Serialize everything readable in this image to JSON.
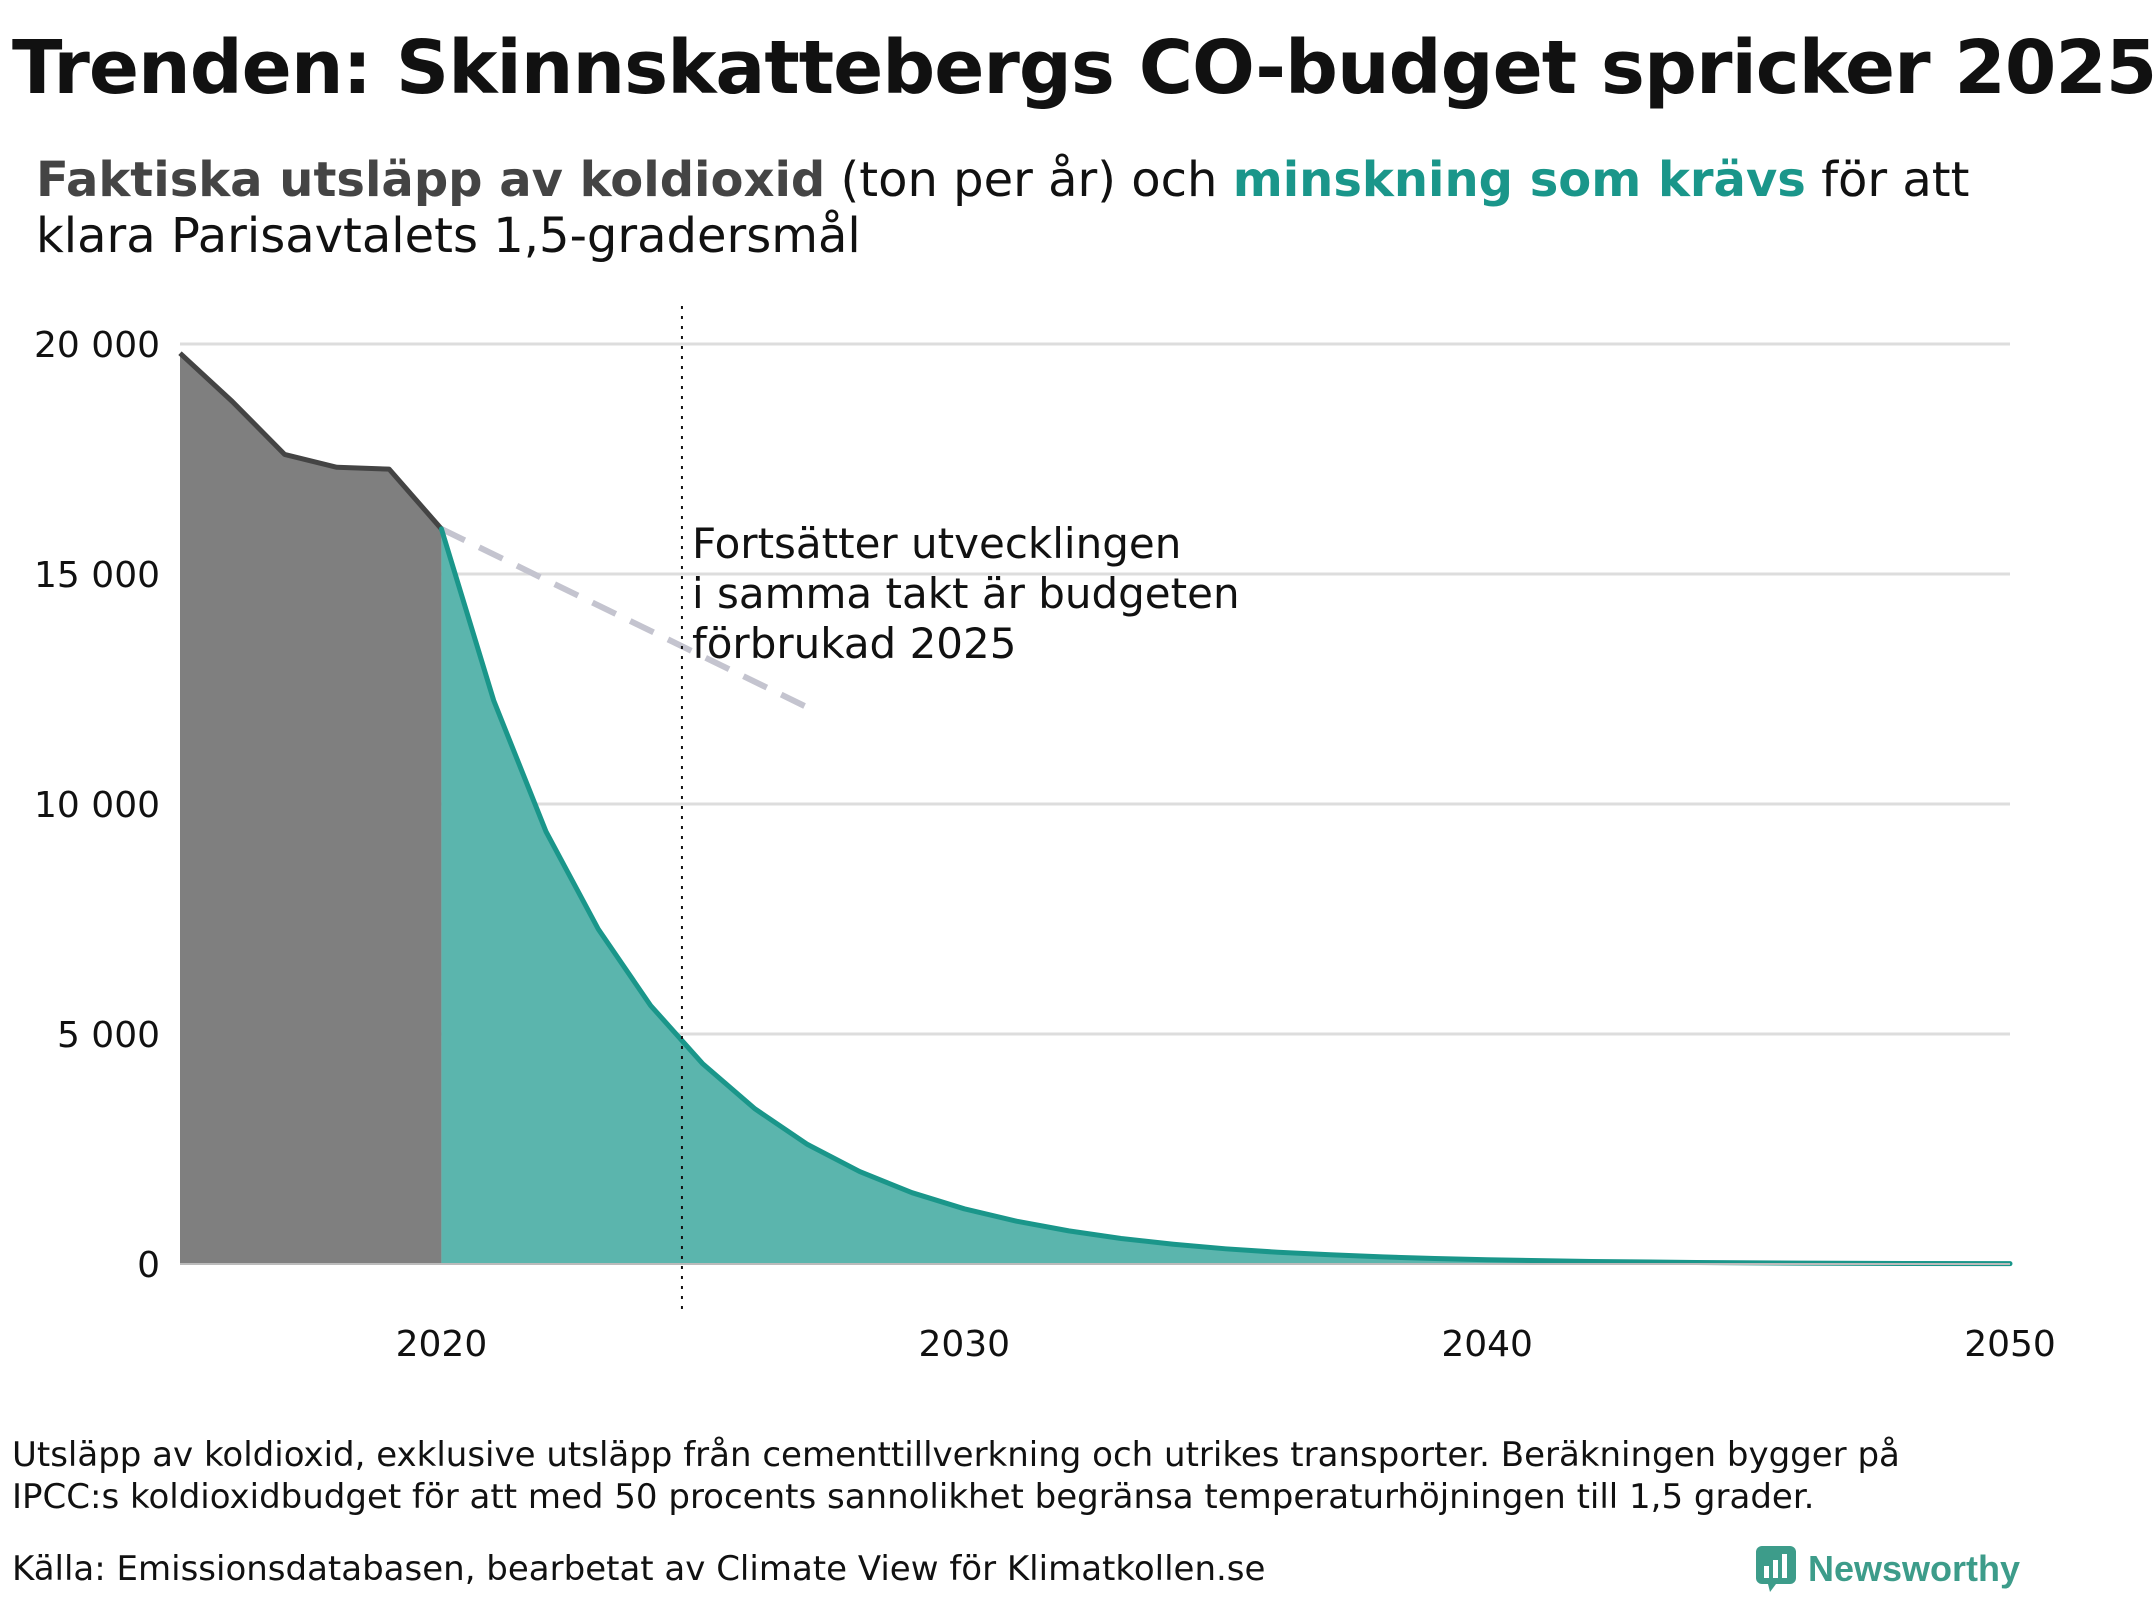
{
  "title": "Trenden: Skinnskattebergs CO-budget spricker 2025",
  "subtitle": {
    "part1": "Faktiska utsläpp av koldioxid",
    "part2": " (ton per år) och ",
    "part3": "minskning som krävs",
    "part4": " för att klara Parisavtalets 1,5-gradersmål"
  },
  "colors": {
    "emissions": "#444444",
    "emissions_fill": "#7f7f7f",
    "reduction": "#1a968a",
    "reduction_fill": "#5bb5ad",
    "trend": "#c4c4cf",
    "grid": "#dddddd"
  },
  "chart_data": {
    "type": "area",
    "xlim": [
      2015,
      2050
    ],
    "ylim": [
      0,
      20000
    ],
    "yticks": [
      0,
      5000,
      10000,
      15000,
      20000
    ],
    "ytick_labels": [
      "0",
      "5 000",
      "10 000",
      "15 000",
      "20 000"
    ],
    "xticks": [
      2020,
      2030,
      2040,
      2050
    ],
    "xtick_labels": [
      "2020",
      "2030",
      "2040",
      "2050"
    ],
    "grid": true,
    "series": [
      {
        "key": "actual",
        "x": [
          2015,
          2016,
          2017,
          2018,
          2019,
          2020
        ],
        "y": [
          19800,
          18750,
          17600,
          17320,
          17280,
          15980
        ]
      },
      {
        "key": "required",
        "x": [
          2020,
          2021,
          2022,
          2023,
          2024,
          2025,
          2026,
          2027,
          2028,
          2029,
          2030,
          2031,
          2032,
          2033,
          2034,
          2035,
          2036,
          2037,
          2038,
          2039,
          2040,
          2042,
          2044,
          2046,
          2048,
          2050
        ],
        "y": [
          15980,
          12250,
          9400,
          7280,
          5620,
          4350,
          3370,
          2600,
          2010,
          1550,
          1200,
          930,
          720,
          555,
          430,
          330,
          255,
          200,
          155,
          120,
          92,
          55,
          33,
          20,
          12,
          7
        ]
      },
      {
        "key": "trend",
        "x": [
          2020,
          2027
        ],
        "y": [
          15980,
          12100
        ]
      }
    ],
    "budget_year": 2024.6,
    "annotation": [
      "Fortsätter utvecklingen",
      "i samma takt är budgeten",
      "förbrukad 2025"
    ]
  },
  "note": "Utsläpp av koldioxid, exklusive utsläpp från cementtillverkning och utrikes transporter. Beräkningen bygger på IPCC:s koldioxidbudget för att med 50 procents sannolikhet begränsa temperaturhöjningen till 1,5 grader.",
  "source": "Källa: Emissionsdatabasen, bearbetat av Climate View för Klimatkollen.se",
  "brand": "Newsworthy"
}
